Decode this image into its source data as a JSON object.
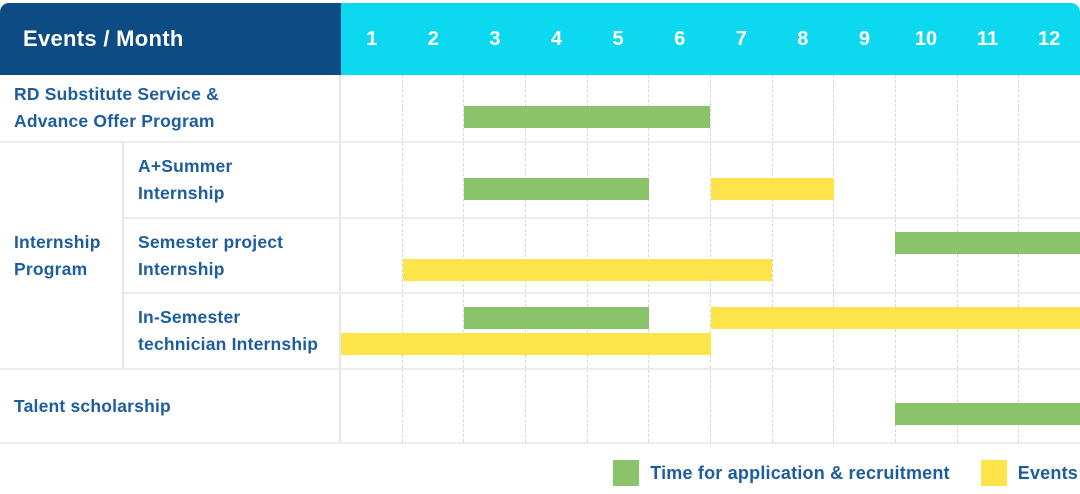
{
  "table": {
    "corner_header": "Events / Month",
    "months": [
      "1",
      "2",
      "3",
      "4",
      "5",
      "6",
      "7",
      "8",
      "9",
      "10",
      "11",
      "12"
    ],
    "sections": [
      {
        "type": "row",
        "label_lines": [
          "RD Substitute Service &",
          "Advance Offer Program"
        ],
        "bars": [
          {
            "color": "green",
            "start_month": 3,
            "end_month": 6,
            "lane": "single"
          }
        ]
      },
      {
        "type": "group",
        "label_lines": [
          "Internship",
          "Program"
        ],
        "rows": [
          {
            "label_lines": [
              "A+Summer",
              "Internship"
            ],
            "bars": [
              {
                "color": "green",
                "start_month": 3,
                "end_month": 5,
                "lane": "single"
              },
              {
                "color": "yellow",
                "start_month": 7,
                "end_month": 8,
                "lane": "single"
              }
            ]
          },
          {
            "label_lines": [
              "Semester project",
              "Internship"
            ],
            "bars": [
              {
                "color": "green",
                "start_month": 10,
                "end_month": 12,
                "lane": "top"
              },
              {
                "color": "yellow",
                "start_month": 2,
                "end_month": 7,
                "lane": "bottom"
              }
            ]
          },
          {
            "label_lines": [
              "In-Semester",
              "technician Internship"
            ],
            "bars": [
              {
                "color": "green",
                "start_month": 3,
                "end_month": 5,
                "lane": "top"
              },
              {
                "color": "yellow",
                "start_month": 7,
                "end_month": 12,
                "lane": "top"
              },
              {
                "color": "yellow",
                "start_month": 1,
                "end_month": 6,
                "lane": "bottom"
              }
            ]
          }
        ]
      },
      {
        "type": "row",
        "label_lines": [
          "Talent scholarship"
        ],
        "bars": [
          {
            "color": "green",
            "start_month": 10,
            "end_month": 12,
            "lane": "single"
          }
        ]
      }
    ]
  },
  "legend": {
    "items": [
      {
        "color": "green",
        "label": "Time for application & recruitment"
      },
      {
        "color": "yellow",
        "label": "Events"
      }
    ]
  },
  "colors": {
    "navy": "#0d4b84",
    "cyan": "#0cd9ef",
    "green": "#8bc36a",
    "yellow": "#fde44a",
    "text_blue": "#1d5c9f"
  },
  "chart_data": {
    "type": "bar",
    "variant": "gantt",
    "title": "Events / Month",
    "xlabel": "Month",
    "x_ticks": [
      1,
      2,
      3,
      4,
      5,
      6,
      7,
      8,
      9,
      10,
      11,
      12
    ],
    "xlim": [
      1,
      12
    ],
    "grid": "vertical-dashed",
    "legend_position": "bottom-right",
    "series_legend": {
      "application": "Time for application & recruitment",
      "event": "Events"
    },
    "rows": [
      {
        "event": "RD Substitute Service & Advance Offer Program",
        "group": null,
        "spans": [
          {
            "kind": "application",
            "from_month": 3,
            "to_month": 6
          }
        ]
      },
      {
        "event": "A+Summer Internship",
        "group": "Internship Program",
        "spans": [
          {
            "kind": "application",
            "from_month": 3,
            "to_month": 5
          },
          {
            "kind": "event",
            "from_month": 7,
            "to_month": 8
          }
        ]
      },
      {
        "event": "Semester project Internship",
        "group": "Internship Program",
        "spans": [
          {
            "kind": "application",
            "from_month": 10,
            "to_month": 12
          },
          {
            "kind": "event",
            "from_month": 2,
            "to_month": 7
          }
        ]
      },
      {
        "event": "In-Semester technician Internship",
        "group": "Internship Program",
        "spans": [
          {
            "kind": "application",
            "from_month": 3,
            "to_month": 5
          },
          {
            "kind": "event",
            "from_month": 7,
            "to_month": 12
          },
          {
            "kind": "event",
            "from_month": 1,
            "to_month": 6
          }
        ]
      },
      {
        "event": "Talent scholarship",
        "group": null,
        "spans": [
          {
            "kind": "application",
            "from_month": 10,
            "to_month": 12
          }
        ]
      }
    ]
  }
}
